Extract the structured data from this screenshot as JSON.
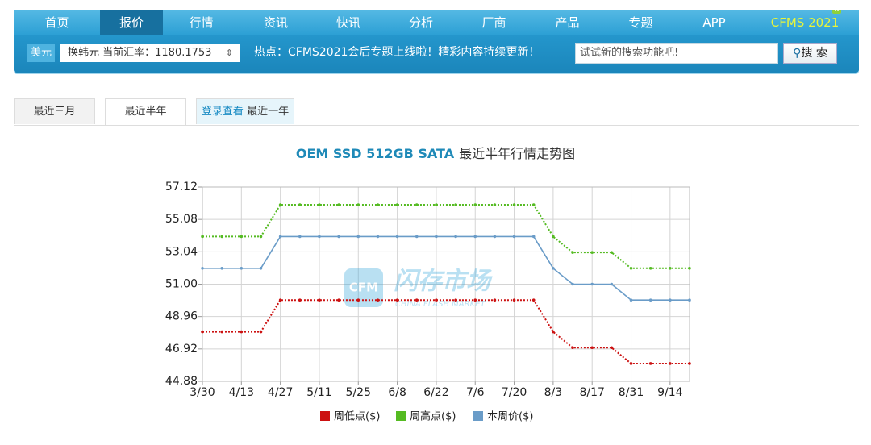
{
  "nav": {
    "items": [
      "首页",
      "报价",
      "行情",
      "资讯",
      "快讯",
      "分析",
      "厂商",
      "产品",
      "专题",
      "APP",
      "CFMS 2021"
    ],
    "badge": "N"
  },
  "toolbar": {
    "currency": "美元",
    "rate": "换韩元 当前汇率：1180.1753",
    "hot": "热点：CFMS2021会后专题上线啦！精彩内容持续更新！",
    "search_placeholder": "试试新的搜索功能吧!",
    "search_button": "搜 索"
  },
  "tabs": [
    "最近三月",
    "最近半年"
  ],
  "locked_tab": {
    "link": "登录查看",
    "label": "最近一年"
  },
  "watermark": {
    "logo": "CFM",
    "name": "闪存市场",
    "english": "CHINA FLASH MARKET"
  },
  "chart_data": {
    "type": "line",
    "title": "OEM SSD 512GB SATA",
    "subtitle": "最近半年行情走势图",
    "categories": [
      "3/30",
      null,
      "4/13",
      null,
      "4/27",
      null,
      "5/11",
      null,
      "5/25",
      null,
      "6/8",
      null,
      "6/22",
      null,
      "7/6",
      null,
      "7/20",
      null,
      "8/3",
      null,
      "8/17",
      null,
      "8/31",
      null,
      "9/14",
      null
    ],
    "series": [
      {
        "name": "周低点($)",
        "color": "#cc1111",
        "style": "dotted",
        "values": [
          48,
          48,
          48,
          48,
          50,
          50,
          50,
          50,
          50,
          50,
          50,
          50,
          50,
          50,
          50,
          50,
          50,
          50,
          48,
          47,
          47,
          47,
          46,
          46,
          46,
          46
        ]
      },
      {
        "name": "周高点($)",
        "color": "#55bb22",
        "style": "dotted",
        "values": [
          54,
          54,
          54,
          54,
          56,
          56,
          56,
          56,
          56,
          56,
          56,
          56,
          56,
          56,
          56,
          56,
          56,
          56,
          54,
          53,
          53,
          53,
          52,
          52,
          52,
          52
        ]
      },
      {
        "name": "本周价($)",
        "color": "#6a9cc8",
        "style": "solid",
        "values": [
          52,
          52,
          52,
          52,
          54,
          54,
          54,
          54,
          54,
          54,
          54,
          54,
          54,
          54,
          54,
          54,
          54,
          54,
          52,
          51,
          51,
          51,
          50,
          50,
          50,
          50
        ]
      }
    ],
    "ylim": [
      44.88,
      57.12
    ],
    "yticks": [
      44.88,
      46.92,
      48.96,
      {
        "value": 51,
        "label": "51.00"
      },
      53.04,
      55.08,
      57.12
    ],
    "grid": true,
    "legend": "bottom"
  }
}
